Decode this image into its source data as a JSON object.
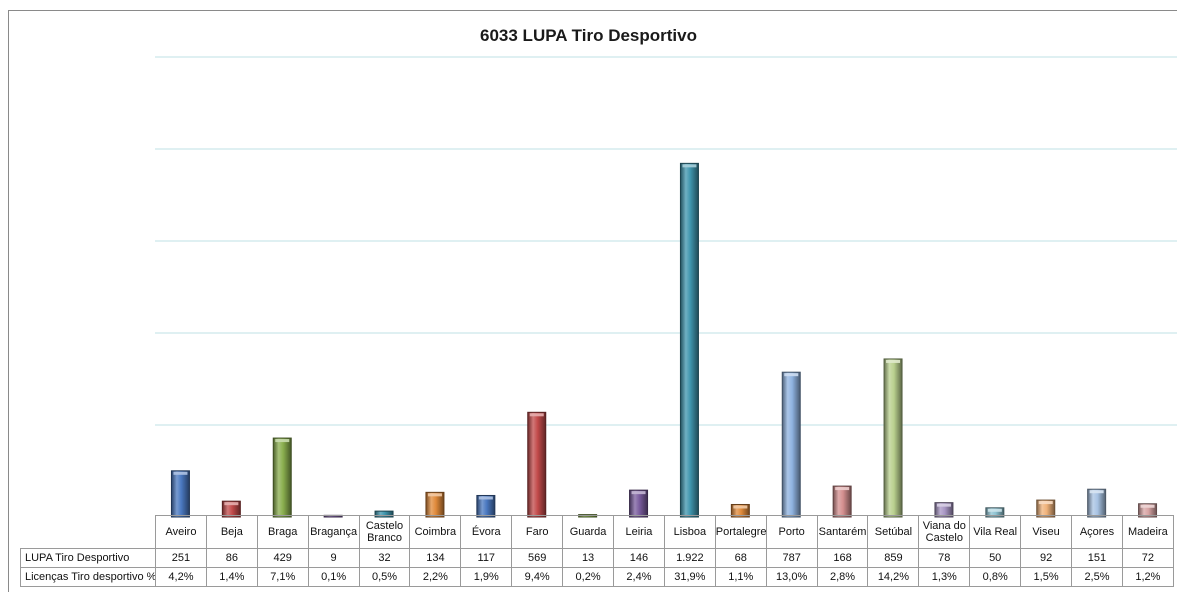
{
  "chart_data": {
    "type": "bar",
    "title": "6033 LUPA Tiro Desportivo",
    "categories": [
      "Aveiro",
      "Beja",
      "Braga",
      "Bragança",
      "Castelo Branco",
      "Coimbra",
      "Évora",
      "Faro",
      "Guarda",
      "Leiria",
      "Lisboa",
      "Portalegre",
      "Porto",
      "Santarém",
      "Setúbal",
      "Viana do Castelo",
      "Vila Real",
      "Viseu",
      "Açores",
      "Madeira"
    ],
    "category_labels": [
      "Aveiro",
      "Beja",
      "Braga",
      "Bragançа",
      "Castelo Branco",
      "Coimbra",
      "Évora",
      "Faro",
      "Guarda",
      "Leiria",
      "Lisboa",
      "Portalegre",
      "Porto",
      "Santarém",
      "Setúbal",
      "Viana do Castelo",
      "Vila Real",
      "Viseu",
      "Açores",
      "Madeira"
    ],
    "series": [
      {
        "name": "LUPA Tiro Desportivo",
        "values": [
          251,
          86,
          429,
          9,
          32,
          134,
          117,
          569,
          13,
          146,
          1922,
          68,
          787,
          168,
          859,
          78,
          50,
          92,
          151,
          72
        ],
        "labels": [
          "251",
          "86",
          "429",
          "9",
          "32",
          "134",
          "117",
          "569",
          "13",
          "146",
          "1.922",
          "68",
          "787",
          "168",
          "859",
          "78",
          "50",
          "92",
          "151",
          "72"
        ]
      },
      {
        "name": "Licenças Tiro desportivo %",
        "labels": [
          "4,2%",
          "1,4%",
          "7,1%",
          "0,1%",
          "0,5%",
          "2,2%",
          "1,9%",
          "9,4%",
          "0,2%",
          "2,4%",
          "31,9%",
          "1,1%",
          "13,0%",
          "2,8%",
          "14,2%",
          "1,3%",
          "0,8%",
          "1,5%",
          "2,5%",
          "1,2%"
        ]
      }
    ],
    "ylim": [
      0,
      2500
    ],
    "grid": true,
    "legend": "data table below chart",
    "bar_colors": [
      "#4a78c0",
      "#c24a4a",
      "#8aae4e",
      "#7a5c9e",
      "#3f95ad",
      "#e08a3a",
      "#4a78c0",
      "#c24a4a",
      "#8aae4e",
      "#7a5c9e",
      "#3f95ad",
      "#e08a3a",
      "#8fb3e0",
      "#d48f8f",
      "#b9d08e",
      "#a896c4",
      "#8ec3d2",
      "#f0b27a",
      "#a8c3e3",
      "#d8a4a4"
    ]
  }
}
